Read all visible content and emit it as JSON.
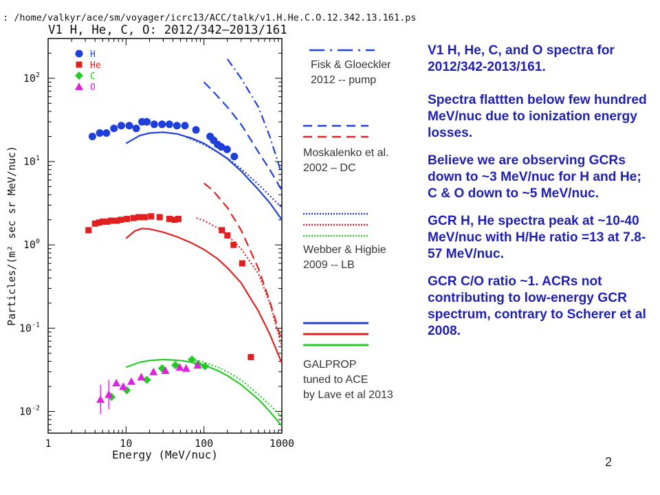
{
  "header": {
    "path": ": /home/valkyr/ace/sm/voyager/icrc13/ACC/talk/v1.H.He.C.O.12.342.13.161.ps"
  },
  "chart_data": {
    "type": "scatter",
    "title": "V1 H, He, C, O: 2012/342–2013/161",
    "xlabel": "Energy (MeV/nuc)",
    "ylabel": "Particles/(m² sec sr MeV/nuc)",
    "xscale": "log",
    "yscale": "log",
    "xlim": [
      1,
      1000
    ],
    "ylim": [
      0.0055,
      300
    ],
    "x_ticks": [
      1,
      10,
      100,
      1000
    ],
    "x_tick_labels": [
      "1",
      "10",
      "100",
      "1000"
    ],
    "y_ticks": [
      0.01,
      0.1,
      1,
      10,
      100
    ],
    "y_tick_labels": [
      {
        "base": "10",
        "exp": "-2"
      },
      {
        "base": "10",
        "exp": "-1"
      },
      {
        "base": "10",
        "exp": "0"
      },
      {
        "base": "10",
        "exp": "1"
      },
      {
        "base": "10",
        "exp": "2"
      }
    ],
    "legend_position": "top-left",
    "series": [
      {
        "name": "H",
        "color": "#1f3fd9",
        "marker": "circle",
        "x": [
          3.7,
          4.6,
          5.6,
          7.0,
          8.7,
          11,
          13.5,
          16,
          18.5,
          23,
          29,
          36,
          45,
          57,
          79,
          120,
          133,
          150,
          167,
          198,
          245
        ],
        "y": [
          20,
          22,
          22,
          25,
          27,
          27,
          25,
          30,
          30,
          28,
          28,
          28,
          27,
          27,
          24,
          20,
          18,
          16,
          15,
          14,
          11.5
        ]
      },
      {
        "name": "He",
        "color": "#e02020",
        "marker": "square",
        "x": [
          3.3,
          4.0,
          4.5,
          5.0,
          5.7,
          6.4,
          7.6,
          8.6,
          10.3,
          12.5,
          14.6,
          17.4,
          21,
          27,
          36,
          42,
          47,
          170,
          200,
          240,
          310,
          400
        ],
        "y": [
          1.5,
          1.8,
          1.85,
          1.9,
          1.9,
          1.95,
          1.95,
          2.0,
          2.05,
          2.1,
          2.15,
          2.15,
          2.2,
          2.15,
          2.05,
          2.0,
          2.05,
          1.5,
          1.3,
          1.0,
          0.6,
          0.045
        ]
      },
      {
        "name": "C",
        "color": "#22cc22",
        "marker": "diamond",
        "x": [
          6.5,
          10.2,
          18.5,
          29,
          43,
          70,
          84,
          103
        ],
        "y": [
          0.015,
          0.018,
          0.024,
          0.033,
          0.036,
          0.042,
          0.037,
          0.035
        ]
      },
      {
        "name": "O",
        "color": "#e020e0",
        "marker": "triangle",
        "x": [
          4.7,
          6.0,
          7.5,
          9.2,
          11.7,
          15.7,
          22.5,
          32,
          49,
          59,
          83
        ],
        "y": [
          0.014,
          0.016,
          0.022,
          0.02,
          0.023,
          0.026,
          0.03,
          0.031,
          0.034,
          0.033,
          0.036
        ]
      }
    ],
    "model_curves": [
      {
        "model": "GALPROP",
        "particle": "H",
        "color": "#1f3fd9",
        "style": "solid",
        "x": [
          10,
          15,
          20,
          30,
          45,
          70,
          100,
          150,
          200,
          300,
          500,
          700,
          1000
        ],
        "y": [
          16.5,
          20.5,
          22,
          22.5,
          21.5,
          19,
          16.5,
          13,
          10.8,
          7.7,
          4.6,
          3.2,
          2.0
        ]
      },
      {
        "model": "Webber & Higbie",
        "particle": "H",
        "color": "#1f3fd9",
        "style": "dotted",
        "x": [
          60,
          80,
          100,
          150,
          200,
          300,
          500,
          700,
          1000
        ],
        "y": [
          19.5,
          17.5,
          16,
          13,
          11,
          8.2,
          5.3,
          3.9,
          2.8
        ]
      },
      {
        "model": "Moskalenko",
        "particle": "H",
        "color": "#1f3fd9",
        "style": "dashed",
        "x": [
          100,
          130,
          200,
          300,
          500,
          700,
          1000
        ],
        "y": [
          90,
          70,
          45,
          28,
          13,
          8,
          4.5
        ]
      },
      {
        "model": "Fisk & Gloeckler",
        "particle": "H",
        "color": "#1f3fd9",
        "style": "dashdot",
        "x": [
          200,
          300,
          500,
          700,
          1000
        ],
        "y": [
          170,
          100,
          45,
          20,
          7
        ]
      },
      {
        "model": "GALPROP",
        "particle": "He",
        "color": "#e02020",
        "style": "solid",
        "x": [
          10,
          13,
          16,
          20,
          30,
          45,
          70,
          100,
          150,
          200,
          300,
          500,
          700,
          1000
        ],
        "y": [
          1.2,
          1.47,
          1.57,
          1.55,
          1.42,
          1.25,
          1.05,
          0.88,
          0.68,
          0.53,
          0.35,
          0.16,
          0.085,
          0.038
        ]
      },
      {
        "model": "Webber & Higbie",
        "particle": "He",
        "color": "#e02020",
        "style": "dotted",
        "x": [
          80,
          100,
          150,
          200,
          300,
          500,
          700,
          1000
        ],
        "y": [
          2.1,
          1.95,
          1.6,
          1.3,
          0.9,
          0.45,
          0.2,
          0.06
        ]
      },
      {
        "model": "Moskalenko",
        "particle": "He",
        "color": "#e02020",
        "style": "dashed",
        "x": [
          100,
          130,
          200,
          300,
          500,
          700,
          1000
        ],
        "y": [
          5.5,
          4.5,
          2.8,
          1.5,
          0.52,
          0.21,
          0.07
        ]
      },
      {
        "model": "GALPROP",
        "particle": "C/O",
        "color": "#22cc22",
        "style": "solid",
        "x": [
          10,
          15,
          20,
          30,
          50,
          70,
          100,
          150,
          200,
          300,
          500,
          700,
          1000
        ],
        "y": [
          0.034,
          0.039,
          0.041,
          0.042,
          0.041,
          0.039,
          0.036,
          0.031,
          0.027,
          0.021,
          0.014,
          0.01,
          0.0067
        ]
      },
      {
        "model": "Webber & Higbie",
        "particle": "C/O",
        "color": "#22cc22",
        "style": "dotted",
        "x": [
          70,
          100,
          150,
          200,
          300,
          500,
          700,
          1000
        ],
        "y": [
          0.042,
          0.039,
          0.034,
          0.03,
          0.024,
          0.016,
          0.012,
          0.0085
        ]
      }
    ]
  },
  "model_legend": [
    {
      "style": "dashdot",
      "colors": [
        "#1f3fd9"
      ],
      "lines": [
        "Fisk & Gloeckler",
        "2012 -- pump"
      ]
    },
    {
      "style": "dashed",
      "colors": [
        "#1f3fd9",
        "#e02020"
      ],
      "lines": [
        "Moskalenko et al.",
        "2002 – DC"
      ]
    },
    {
      "style": "dotted",
      "colors": [
        "#1f3fd9",
        "#e02020",
        "#22cc22"
      ],
      "lines": [
        "Webber & Higbie",
        "2009 -- LB"
      ]
    },
    {
      "style": "solid",
      "colors": [
        "#1f3fd9",
        "#e02020",
        "#22cc22"
      ],
      "lines": [
        "GALPROP",
        "tuned to ACE",
        "by Lave et al 2013"
      ]
    }
  ],
  "body_text": {
    "p1": "V1 H, He, C, and O  spectra for 2012/342-2013/161.",
    "p2": "Spectra flattten below few hundred MeV/nuc due to ionization energy losses.",
    "p3a": "Believe we are  observing GCRs down to ~3 MeV/nuc for H and He;",
    "p3b": "C & O down to ~5 MeV/nuc.",
    "p4": "GCR H, He spectra peak at ~10-40 MeV/nuc with H/He ratio =13 at 7.8-57 MeV/nuc.",
    "p5": "GCR C/O ratio ~1. ACRs not contributing to low-energy GCR spectrum, contrary to Scherer et al 2008."
  },
  "page_number": "2"
}
